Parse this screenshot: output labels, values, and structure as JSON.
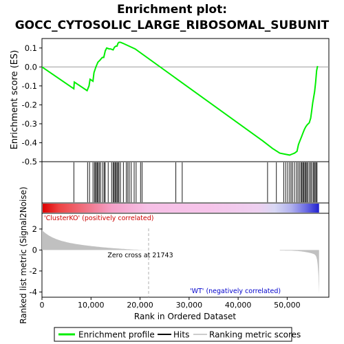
{
  "chart_data": {
    "type": "line",
    "title_line1": "Enrichment plot:",
    "title_line2": "GOCC_CYTOSOLIC_LARGE_RIBOSOMAL_SUBUNIT",
    "es_panel": {
      "ylabel": "Enrichment score (ES)",
      "ylim": [
        -0.5,
        0.15
      ],
      "yticks": [
        "0.1",
        "0.0",
        "-0.1",
        "-0.2",
        "-0.3",
        "-0.4",
        "-0.5"
      ],
      "ytick_values": [
        0.1,
        0.0,
        -0.1,
        -0.2,
        -0.3,
        -0.4,
        -0.5
      ],
      "series": [
        {
          "name": "Enrichment profile",
          "color": "#00ee00",
          "x": [
            0,
            6500,
            6600,
            9200,
            9600,
            9800,
            10400,
            10600,
            11000,
            11400,
            11800,
            12300,
            12600,
            12900,
            13200,
            13700,
            14000,
            14500,
            14800,
            15100,
            15300,
            15500,
            15700,
            16000,
            16500,
            19000,
            45000,
            47000,
            48500,
            49500,
            50500,
            51000,
            51500,
            52000,
            52300,
            52600,
            52900,
            53200,
            53500,
            53800,
            54100,
            54500,
            54800,
            55000,
            55200,
            55400,
            55600,
            55800,
            56000,
            56200
          ],
          "y": [
            0.0,
            -0.115,
            -0.08,
            -0.125,
            -0.1,
            -0.065,
            -0.075,
            -0.03,
            0.0,
            0.025,
            0.035,
            0.05,
            0.05,
            0.085,
            0.1,
            0.095,
            0.095,
            0.09,
            0.105,
            0.11,
            0.11,
            0.125,
            0.13,
            0.13,
            0.125,
            0.095,
            -0.39,
            -0.43,
            -0.455,
            -0.46,
            -0.465,
            -0.46,
            -0.455,
            -0.445,
            -0.41,
            -0.39,
            -0.37,
            -0.35,
            -0.33,
            -0.315,
            -0.305,
            -0.295,
            -0.27,
            -0.23,
            -0.19,
            -0.16,
            -0.13,
            -0.08,
            -0.02,
            0.005
          ]
        }
      ]
    },
    "hits_panel": {
      "hit_positions": [
        6500,
        9300,
        9700,
        10400,
        10700,
        10900,
        11100,
        11300,
        11500,
        11700,
        12000,
        12400,
        12700,
        12900,
        13500,
        14200,
        14500,
        14700,
        14900,
        15100,
        15300,
        15500,
        15700,
        16000,
        16600,
        17200,
        17500,
        17800,
        18200,
        18800,
        19200,
        20100,
        20400,
        27300,
        28600,
        46000,
        47800,
        49300,
        49700,
        50100,
        50500,
        50800,
        51100,
        51500,
        51900,
        52200,
        52500,
        52800,
        53000,
        53200,
        53400,
        53600,
        53800,
        54000,
        54200,
        54500,
        54800,
        55000,
        55300,
        55500,
        55700,
        55900,
        56100
      ]
    },
    "metric_panel": {
      "ylabel": "Ranked list metric (Signal2Noise)",
      "ylim": [
        -4.5,
        3.5
      ],
      "yticks": [
        "2",
        "0",
        "-2",
        "-4"
      ],
      "ytick_values": [
        2,
        0,
        -2,
        -4
      ],
      "positive_label": "'ClusterKO' (positively correlated)",
      "negative_label": "'WT' (negatively correlated)",
      "zero_cross_label": "Zero cross at 21743",
      "zero_cross": 21743,
      "positive_color": "#cc0000",
      "negative_color": "#0000cc"
    },
    "xlabel": "Rank in Ordered Dataset",
    "xlim": [
      0,
      58500
    ],
    "xticks": [
      "0",
      "10,000",
      "20,000",
      "30,000",
      "40,000",
      "50,000"
    ],
    "xtick_values": [
      0,
      10000,
      20000,
      30000,
      40000,
      50000
    ],
    "n_genes": 56500,
    "legend": [
      {
        "label": "Enrichment profile",
        "color": "#00ee00"
      },
      {
        "label": "Hits",
        "color": "#000000"
      },
      {
        "label": "Ranking metric scores",
        "color": "#cccccc"
      }
    ]
  }
}
